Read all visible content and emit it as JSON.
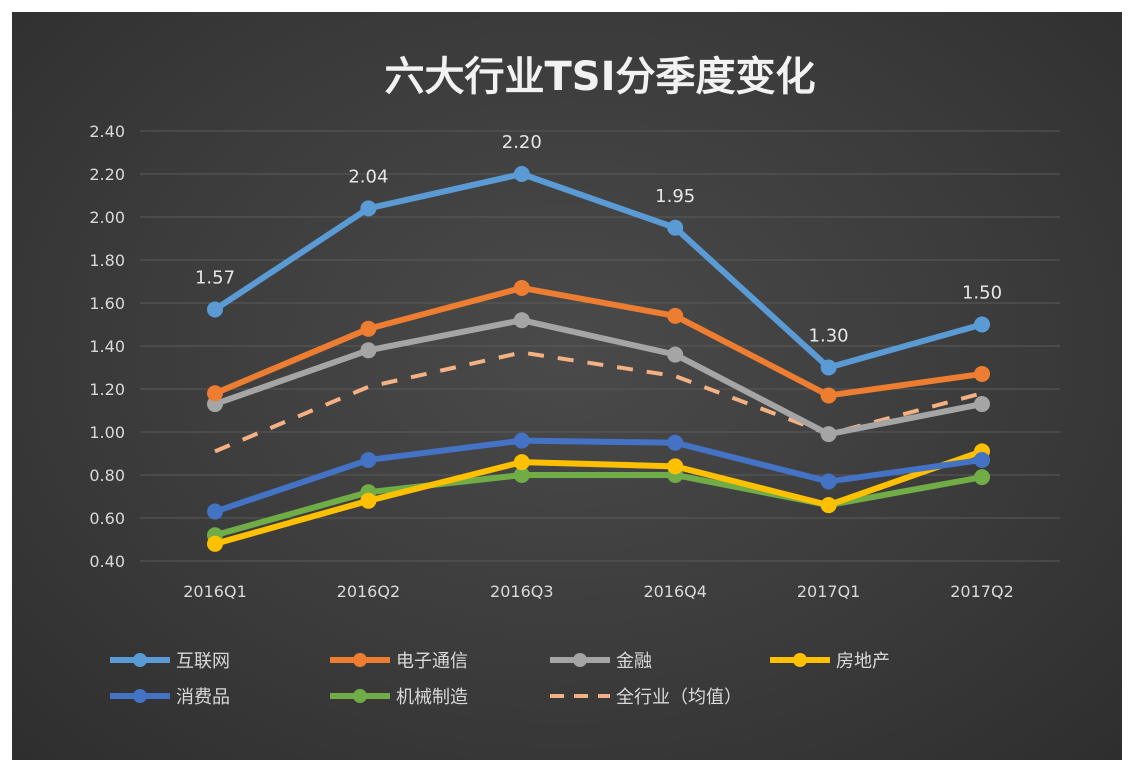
{
  "chart_data": {
    "type": "line",
    "title": "六大行业TSI分季度变化",
    "categories": [
      "2016Q1",
      "2016Q2",
      "2016Q3",
      "2016Q4",
      "2017Q1",
      "2017Q2"
    ],
    "ylim": [
      0.4,
      2.4
    ],
    "yticks": [
      "0.40",
      "0.60",
      "0.80",
      "1.00",
      "1.20",
      "1.40",
      "1.60",
      "1.80",
      "2.00",
      "2.20",
      "2.40"
    ],
    "grid": true,
    "legend_position": "bottom",
    "series": [
      {
        "name": "互联网",
        "color": "#5b9bd5",
        "values": [
          1.57,
          2.04,
          2.2,
          1.95,
          1.3,
          1.5
        ],
        "labels": [
          "1.57",
          "2.04",
          "2.20",
          "1.95",
          "1.30",
          "1.50"
        ]
      },
      {
        "name": "电子通信",
        "color": "#ed7d31",
        "values": [
          1.18,
          1.48,
          1.67,
          1.54,
          1.17,
          1.27
        ]
      },
      {
        "name": "金融",
        "color": "#a5a5a5",
        "values": [
          1.13,
          1.38,
          1.52,
          1.36,
          0.99,
          1.13
        ]
      },
      {
        "name": "房地产",
        "color": "#ffc000",
        "values": [
          0.48,
          0.68,
          0.86,
          0.84,
          0.66,
          0.91
        ]
      },
      {
        "name": "消费品",
        "color": "#4472c4",
        "values": [
          0.63,
          0.87,
          0.96,
          0.95,
          0.77,
          0.87
        ]
      },
      {
        "name": "机械制造",
        "color": "#70ad47",
        "values": [
          0.52,
          0.72,
          0.8,
          0.8,
          0.66,
          0.79
        ]
      },
      {
        "name": "全行业（均值）",
        "color": "#f4b183",
        "dashed": true,
        "values": [
          0.91,
          1.21,
          1.37,
          1.26,
          0.99,
          1.18
        ]
      }
    ]
  }
}
